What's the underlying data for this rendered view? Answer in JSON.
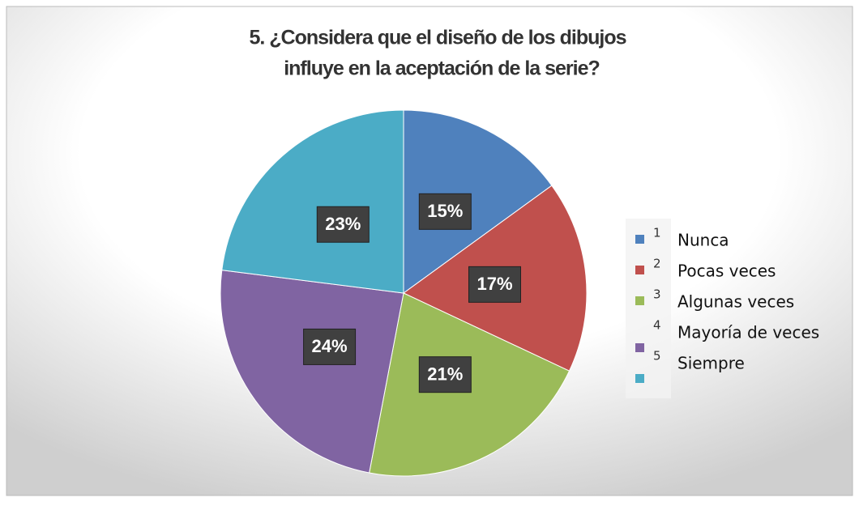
{
  "chart_data": {
    "type": "pie",
    "title": [
      "5. ¿Considera que el diseño de los dibujos",
      "influye en la aceptación de la serie?"
    ],
    "categories": [
      "Nunca",
      "Pocas veces",
      "Algunas veces",
      "Mayoría de veces",
      "Siempre"
    ],
    "codes": [
      1,
      2,
      3,
      4,
      5
    ],
    "values": [
      15,
      17,
      21,
      24,
      23
    ],
    "value_labels": [
      "15%",
      "17%",
      "21%",
      "24%",
      "23%"
    ],
    "colors": [
      "#4f81bd",
      "#c0504d",
      "#9bbb59",
      "#8064a2",
      "#4bacc6"
    ],
    "legend": "right"
  }
}
